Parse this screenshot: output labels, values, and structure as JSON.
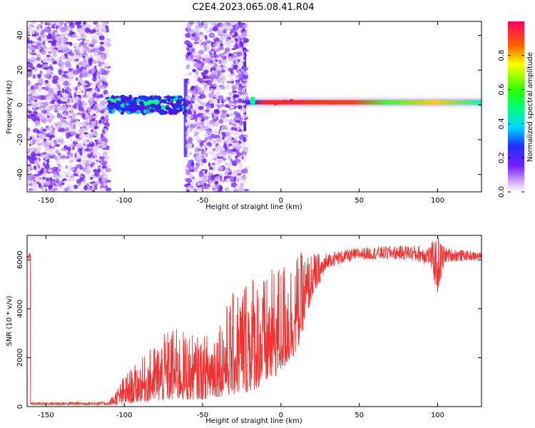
{
  "title": "C2E4.2023.065.08.41.R04",
  "chart_data": [
    {
      "type": "heatmap",
      "xlabel": "Height of straight line (km)",
      "ylabel": "Frequency (Hz)",
      "xlim": [
        -162,
        128
      ],
      "ylim": [
        -50,
        48
      ],
      "x_ticks": [
        -150,
        -100,
        -50,
        0,
        50,
        100
      ],
      "y_ticks": [
        -40,
        -20,
        0,
        20,
        40
      ],
      "colorbar": {
        "label": "Normalized spectral amplitude",
        "range": [
          0,
          1
        ],
        "ticks": [
          0.0,
          0.2,
          0.4,
          0.6,
          0.8
        ]
      },
      "regions": [
        {
          "x": [
            -162,
            -110
          ],
          "f": [
            -50,
            48
          ],
          "amplitude": 0.1,
          "kind": "noise"
        },
        {
          "x": [
            -110,
            -60
          ],
          "f": [
            -8,
            12
          ],
          "amplitude": 0.35,
          "kind": "scattered"
        },
        {
          "x": [
            -60,
            -22
          ],
          "f": [
            -50,
            48
          ],
          "amplitude": 0.1,
          "kind": "noise"
        },
        {
          "x": [
            -22,
            128
          ],
          "f": [
            0,
            3
          ],
          "amplitude": 0.9,
          "kind": "carrier"
        }
      ]
    },
    {
      "type": "line",
      "xlabel": "Height of straight line (km)",
      "ylabel": "SNR (10 * v/v)",
      "xlim": [
        -162,
        128
      ],
      "ylim": [
        0,
        7000
      ],
      "x_ticks": [
        -150,
        -100,
        -50,
        0,
        50,
        100
      ],
      "y_ticks": [
        0,
        2000,
        4000,
        6000
      ],
      "color": "#ee3333",
      "envelope": [
        {
          "x": -160,
          "low": 60,
          "high": 180
        },
        {
          "x": -110,
          "low": 60,
          "high": 200
        },
        {
          "x": -100,
          "low": 100,
          "high": 1300
        },
        {
          "x": -90,
          "low": 200,
          "high": 1900
        },
        {
          "x": -70,
          "low": 250,
          "high": 3300
        },
        {
          "x": -50,
          "low": 300,
          "high": 2800
        },
        {
          "x": -40,
          "low": 400,
          "high": 3700
        },
        {
          "x": -30,
          "low": 500,
          "high": 4700
        },
        {
          "x": -20,
          "low": 600,
          "high": 5800
        },
        {
          "x": -10,
          "low": 900,
          "high": 5300
        },
        {
          "x": 0,
          "low": 1400,
          "high": 6000
        },
        {
          "x": 10,
          "low": 2200,
          "high": 6300
        },
        {
          "x": 20,
          "low": 4500,
          "high": 6300
        },
        {
          "x": 30,
          "low": 5700,
          "high": 6300
        },
        {
          "x": 50,
          "low": 6000,
          "high": 6500
        },
        {
          "x": 80,
          "low": 6000,
          "high": 6600
        },
        {
          "x": 95,
          "low": 5800,
          "high": 6600
        },
        {
          "x": 100,
          "low": 4500,
          "high": 7000
        },
        {
          "x": 105,
          "low": 5900,
          "high": 6500
        },
        {
          "x": 128,
          "low": 6000,
          "high": 6300
        }
      ]
    }
  ]
}
